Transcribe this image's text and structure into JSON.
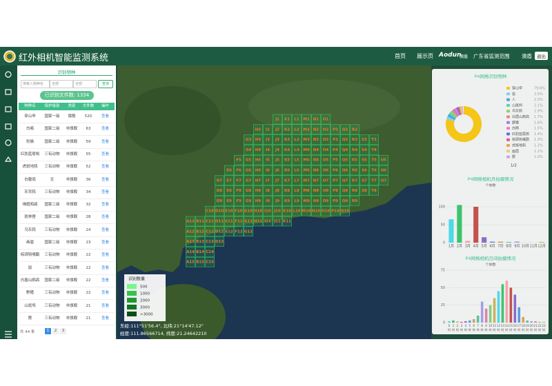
{
  "header": {
    "title": "红外相机智能监测系统",
    "nav": [
      "首页",
      "展示页"
    ],
    "brand": "Aodun",
    "brand_sub": "澳盾",
    "region": "广东省监测范围",
    "user": "澳盾",
    "logout": "退出"
  },
  "left_panel": {
    "tab": "识别物种",
    "search_placeholder": "搜索入物种名",
    "filter1": "全部",
    "filter2": "全部",
    "query": "查询",
    "file_count_label": "已识别文件数:",
    "file_count": 1334,
    "table": {
      "headers": [
        "物种名",
        "保护级别",
        "类别",
        "文件数",
        "操作"
      ],
      "rows": [
        [
          "穿山甲",
          "国家一级",
          "旗舰",
          520,
          "查看"
        ],
        [
          "白鹇",
          "国家二级",
          "非旗舰",
          63,
          "查看"
        ],
        [
          "豹猫",
          "国家二级",
          "非旗舰",
          59,
          "查看"
        ],
        [
          "红肋蓝尾鸲",
          "三有动物",
          "非旗舰",
          55,
          "查看"
        ],
        [
          "虎斑地鸫",
          "三有动物",
          "非旗舰",
          52,
          "查看"
        ],
        [
          "白腹鸦",
          "无",
          "非旗舰",
          36,
          "查看"
        ],
        [
          "灰背鸫",
          "三有动物",
          "非旗舰",
          34,
          "查看"
        ],
        [
          "褐翅鸦鹃",
          "国家二级",
          "非旗舰",
          32,
          "查看"
        ],
        [
          "斑林狸",
          "国家二级",
          "非旗舰",
          28,
          "查看"
        ],
        [
          "乌灰鸫",
          "三有动物",
          "非旗舰",
          24,
          "查看"
        ],
        [
          "画眉",
          "国家二级",
          "非旗舰",
          23,
          "查看"
        ],
        [
          "棕颈钩嘴鹛",
          "三有动物",
          "非旗舰",
          22,
          "查看"
        ],
        [
          "鼠",
          "三有动物",
          "非旗舰",
          22,
          "查看"
        ],
        [
          "白眉山鹧鸪",
          "国家二级",
          "非旗舰",
          22,
          "查看"
        ],
        [
          "野猪",
          "三有动物",
          "非旗舰",
          22,
          "查看"
        ],
        [
          "山斑鸠",
          "三有动物",
          "非旗舰",
          21,
          "查看"
        ],
        [
          "麂",
          "三有动物",
          "非旗舰",
          21,
          "查看"
        ]
      ]
    },
    "footer": {
      "total": "共 44 条",
      "pages": [
        1,
        2,
        3
      ]
    }
  },
  "map": {
    "grid": [
      [
        "J1",
        "K1",
        "L1",
        "M1",
        "N1",
        "O1"
      ],
      [
        "H2",
        "I2",
        "J2",
        "K2",
        "L2",
        "M2",
        "N2",
        "O2",
        "P2",
        "Q2",
        "R2"
      ],
      [
        "G3",
        "H3",
        "I3",
        "J3",
        "K3",
        "L3",
        "M3",
        "N3",
        "O3",
        "P3",
        "Q3",
        "R3",
        "S3",
        "T3"
      ],
      [
        "G4",
        "H4",
        "I4",
        "J4",
        "K4",
        "L4",
        "M4",
        "N4",
        "O4",
        "P4",
        "Q4",
        "R4",
        "S4",
        "T4"
      ],
      [
        "F5",
        "G5",
        "H5",
        "I5",
        "J5",
        "K5",
        "L5",
        "M5",
        "N5",
        "O5",
        "P5",
        "Q5",
        "R5",
        "S5",
        "T5",
        "U5"
      ],
      [
        "E6",
        "F6",
        "G6",
        "H6",
        "I6",
        "J6",
        "K6",
        "L6",
        "M6",
        "N6",
        "O6",
        "P6",
        "Q6",
        "R6",
        "S6",
        "T6",
        "U6"
      ],
      [
        "D7",
        "E7",
        "F7",
        "G7",
        "H7",
        "I7",
        "J7",
        "K7",
        "L7",
        "M7",
        "N7",
        "O7",
        "P7",
        "Q7",
        "R7",
        "S7",
        "T7",
        "U7"
      ],
      [
        "D8",
        "E8",
        "F8",
        "G8",
        "H8",
        "I8",
        "J8",
        "K8",
        "L8",
        "M8",
        "N8",
        "O8",
        "P8",
        "Q8",
        "R8",
        "S8",
        "T8"
      ],
      [
        "D9",
        "E9",
        "F9",
        "G9",
        "H9",
        "I9",
        "J9",
        "K9",
        "L9",
        "M9",
        "N9",
        "O9",
        "P9",
        "Q9",
        "R9"
      ],
      [
        "C10",
        "D10",
        "E10",
        "F10",
        "G10",
        "H10",
        "I10",
        "J10",
        "K10",
        "L10",
        "M10",
        "N10",
        "O10",
        "P10",
        "Q10"
      ],
      [
        "A11",
        "B11",
        "C11",
        "D11",
        "E11",
        "F11",
        "G11",
        "H11",
        "I11",
        "J11",
        "K11"
      ],
      [
        "A12",
        "B12",
        "C12",
        "D12",
        "E12",
        "F12",
        "G12"
      ],
      [
        "A13",
        "B13",
        "C13",
        "D13"
      ],
      [
        "A14",
        "B14",
        "C14"
      ],
      [
        "A15",
        "B15",
        "C15"
      ]
    ],
    "legend": {
      "title": "识别数量",
      "items": [
        {
          "label": "500",
          "color": "#7af58a"
        },
        {
          "label": "1000",
          "color": "#36c448"
        },
        {
          "label": "2000",
          "color": "#1f9a30"
        },
        {
          "label": "3000",
          "color": "#157420"
        },
        {
          "label": ">3000",
          "color": "#0c4d14"
        }
      ]
    },
    "coords": [
      "东经:111°51'56.4\", 北纬:21°14'47.12\"",
      "经度:111.86566714, 纬度:21.24642210"
    ]
  },
  "chart_data": [
    {
      "type": "pie",
      "title": "P4网格识别物种",
      "legend_page": "1/2",
      "categories": [
        "穿山甲",
        "鼠",
        "人",
        "山斑鸠",
        "乌灰鸫",
        "白眉山鹧鸪",
        "野猪",
        "白鹇",
        "红肋蓝尾鸲",
        "棕颈钩嘴鹛",
        "虎斑地鸫",
        "画眉",
        "麂"
      ],
      "values": [
        79.6,
        2.5,
        2.3,
        2.1,
        1.9,
        1.7,
        1.6,
        1.5,
        1.4,
        1.3,
        1.2,
        1.1,
        1.0
      ],
      "value_labels": [
        "79.6%",
        "2.5%",
        "2.3%",
        "2.1%",
        "1.9%",
        "1.7%",
        "1.6%",
        "1.5%",
        "1.4%",
        "1.3%",
        "1.2%",
        "1.1%",
        "1.0%"
      ],
      "colors": [
        "#f5c518",
        "#7ed0f0",
        "#4fa3e0",
        "#5fd3a0",
        "#8cd07a",
        "#f08080",
        "#a97ce0",
        "#e87fd0",
        "#5b6fe0",
        "#e05b8a",
        "#f0a050",
        "#e0d080",
        "#d0a0e0"
      ]
    },
    {
      "type": "bar",
      "title": "P4网格相机月拍摄情况",
      "y_label": "个体数",
      "categories": [
        "1月",
        "2月",
        "3月",
        "4月",
        "5月",
        "6月",
        "7月",
        "8月",
        "9月",
        "10月",
        "11月",
        "12月"
      ],
      "values": [
        65,
        105,
        5,
        100,
        15,
        3,
        3,
        2,
        3,
        0,
        0,
        2
      ],
      "colors": [
        "#4fd8e8",
        "#3cc36b",
        "#f3a4b0",
        "#c6504b",
        "#8d6bc8",
        "#5b9be0",
        "#e0a050",
        "#60c0a0",
        "#a0a0e0",
        "#e080b0",
        "#80d080",
        "#d0b060"
      ],
      "ylim": [
        0,
        125
      ],
      "yticks": [
        0,
        50,
        100
      ],
      "grid": true
    },
    {
      "type": "bar",
      "title": "P4网格相机日间拍摄情况",
      "y_label": "个体数",
      "x_label": "时",
      "categories": [
        "0",
        "1",
        "2",
        "3",
        "4",
        "5",
        "6",
        "7",
        "8",
        "9",
        "10",
        "11",
        "12",
        "13",
        "14",
        "15",
        "16",
        "17",
        "18",
        "19",
        "20",
        "21",
        "22",
        "23"
      ],
      "values": [
        2,
        3,
        2,
        1,
        2,
        3,
        5,
        10,
        30,
        20,
        25,
        35,
        45,
        55,
        60,
        50,
        40,
        22,
        8,
        3,
        2,
        2,
        1,
        1
      ],
      "colors": [
        "#4fd8e8",
        "#3cc36b",
        "#f3a4b0",
        "#c6504b",
        "#8d6bc8",
        "#5b9be0",
        "#e0a050",
        "#60c0a0",
        "#a0a0e0",
        "#e080b0",
        "#80d080",
        "#d0b060",
        "#4fd8e8",
        "#3cc36b",
        "#f3a4b0",
        "#c6504b",
        "#8d6bc8",
        "#5b9be0",
        "#e0a050",
        "#60c0a0",
        "#a0a0e0",
        "#e080b0",
        "#80d080",
        "#d0b060"
      ],
      "ylim": [
        0,
        80
      ],
      "yticks": [
        0,
        25,
        50,
        75
      ],
      "grid": true
    }
  ]
}
